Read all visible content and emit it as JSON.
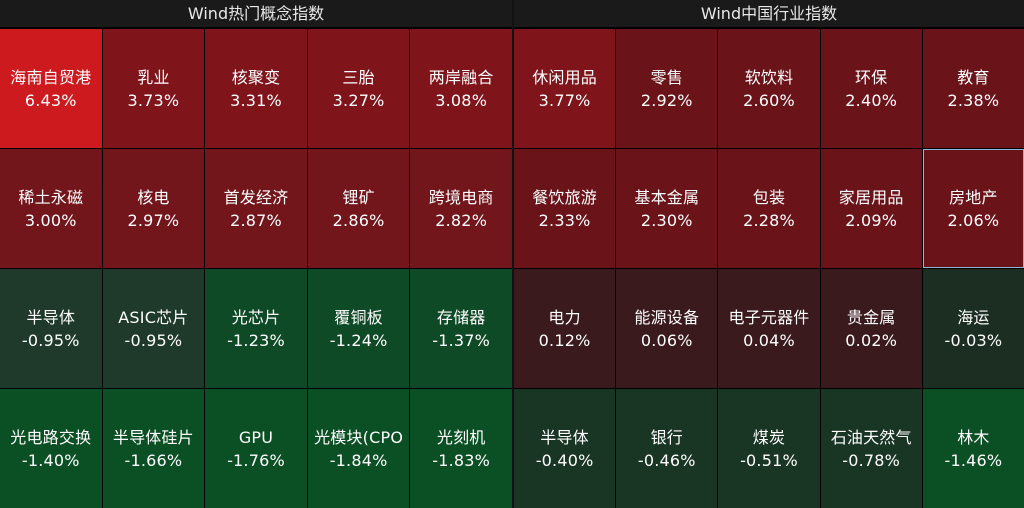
{
  "panels": [
    {
      "title": "Wind热门概念指数",
      "tiles": [
        {
          "name": "海南自贸港",
          "pct": "6.43%",
          "color": "#cc1a1f"
        },
        {
          "name": "乳业",
          "pct": "3.73%",
          "color": "#7f141a"
        },
        {
          "name": "核聚变",
          "pct": "3.31%",
          "color": "#7f141a"
        },
        {
          "name": "三胎",
          "pct": "3.27%",
          "color": "#7f141a"
        },
        {
          "name": "两岸融合",
          "pct": "3.08%",
          "color": "#7f141a"
        },
        {
          "name": "稀土永磁",
          "pct": "3.00%",
          "color": "#72161b"
        },
        {
          "name": "核电",
          "pct": "2.97%",
          "color": "#72161b"
        },
        {
          "name": "首发经济",
          "pct": "2.87%",
          "color": "#72161b"
        },
        {
          "name": "锂矿",
          "pct": "2.86%",
          "color": "#72161b"
        },
        {
          "name": "跨境电商",
          "pct": "2.82%",
          "color": "#72161b"
        },
        {
          "name": "半导体",
          "pct": "-0.95%",
          "color": "#1f3a2a"
        },
        {
          "name": "ASIC芯片",
          "pct": "-0.95%",
          "color": "#1f3a2a"
        },
        {
          "name": "光芯片",
          "pct": "-1.23%",
          "color": "#0f4a26"
        },
        {
          "name": "覆铜板",
          "pct": "-1.24%",
          "color": "#0f4a26"
        },
        {
          "name": "存储器",
          "pct": "-1.37%",
          "color": "#0f4a26"
        },
        {
          "name": "光电路交换",
          "pct": "-1.40%",
          "color": "#0b4f24"
        },
        {
          "name": "半导体硅片",
          "pct": "-1.66%",
          "color": "#0b4f24"
        },
        {
          "name": "GPU",
          "pct": "-1.76%",
          "color": "#0b4f24"
        },
        {
          "name": "光模块(CPO",
          "pct": "-1.84%",
          "color": "#0b4f24"
        },
        {
          "name": "光刻机",
          "pct": "-1.83%",
          "color": "#0b4f24"
        }
      ]
    },
    {
      "title": "Wind中国行业指数",
      "tiles": [
        {
          "name": "休闲用品",
          "pct": "3.77%",
          "color": "#7f141a"
        },
        {
          "name": "零售",
          "pct": "2.92%",
          "color": "#6a141a"
        },
        {
          "name": "软饮料",
          "pct": "2.60%",
          "color": "#6a141a"
        },
        {
          "name": "环保",
          "pct": "2.40%",
          "color": "#6a141a"
        },
        {
          "name": "教育",
          "pct": "2.38%",
          "color": "#6a141a"
        },
        {
          "name": "餐饮旅游",
          "pct": "2.33%",
          "color": "#6a141a"
        },
        {
          "name": "基本金属",
          "pct": "2.30%",
          "color": "#6a141a"
        },
        {
          "name": "包装",
          "pct": "2.28%",
          "color": "#6a141a"
        },
        {
          "name": "家居用品",
          "pct": "2.09%",
          "color": "#6a141a"
        },
        {
          "name": "房地产",
          "pct": "2.06%",
          "color": "#6a141a",
          "selected": true
        },
        {
          "name": "电力",
          "pct": "0.12%",
          "color": "#3a1a1c"
        },
        {
          "name": "能源设备",
          "pct": "0.06%",
          "color": "#3a1a1c"
        },
        {
          "name": "电子元器件",
          "pct": "0.04%",
          "color": "#3a1a1c"
        },
        {
          "name": "贵金属",
          "pct": "0.02%",
          "color": "#3a1a1c"
        },
        {
          "name": "海运",
          "pct": "-0.03%",
          "color": "#1c2e22"
        },
        {
          "name": "半导体",
          "pct": "-0.40%",
          "color": "#193524"
        },
        {
          "name": "银行",
          "pct": "-0.46%",
          "color": "#193524"
        },
        {
          "name": "煤炭",
          "pct": "-0.51%",
          "color": "#193524"
        },
        {
          "name": "石油天然气",
          "pct": "-0.78%",
          "color": "#193524"
        },
        {
          "name": "林木",
          "pct": "-1.46%",
          "color": "#0b4f24"
        }
      ]
    }
  ]
}
